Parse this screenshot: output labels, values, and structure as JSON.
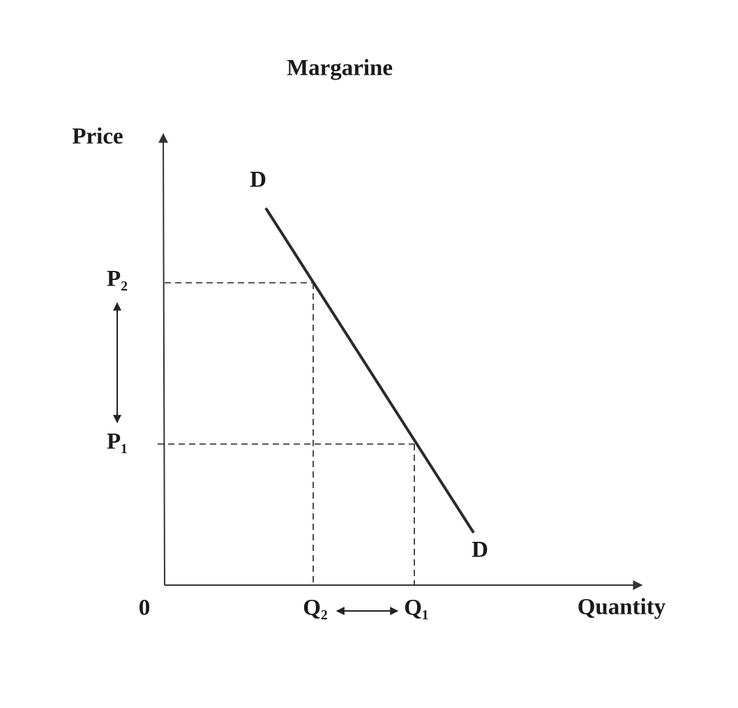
{
  "title": "Margarine",
  "axes": {
    "y_label": "Price",
    "x_label": "Quantity",
    "origin": "0"
  },
  "curve": {
    "label_top": "D",
    "label_bottom": "D"
  },
  "price_levels": [
    "P₂",
    "P₁"
  ],
  "quantity_levels": [
    "Q₂",
    "Q₁"
  ]
}
